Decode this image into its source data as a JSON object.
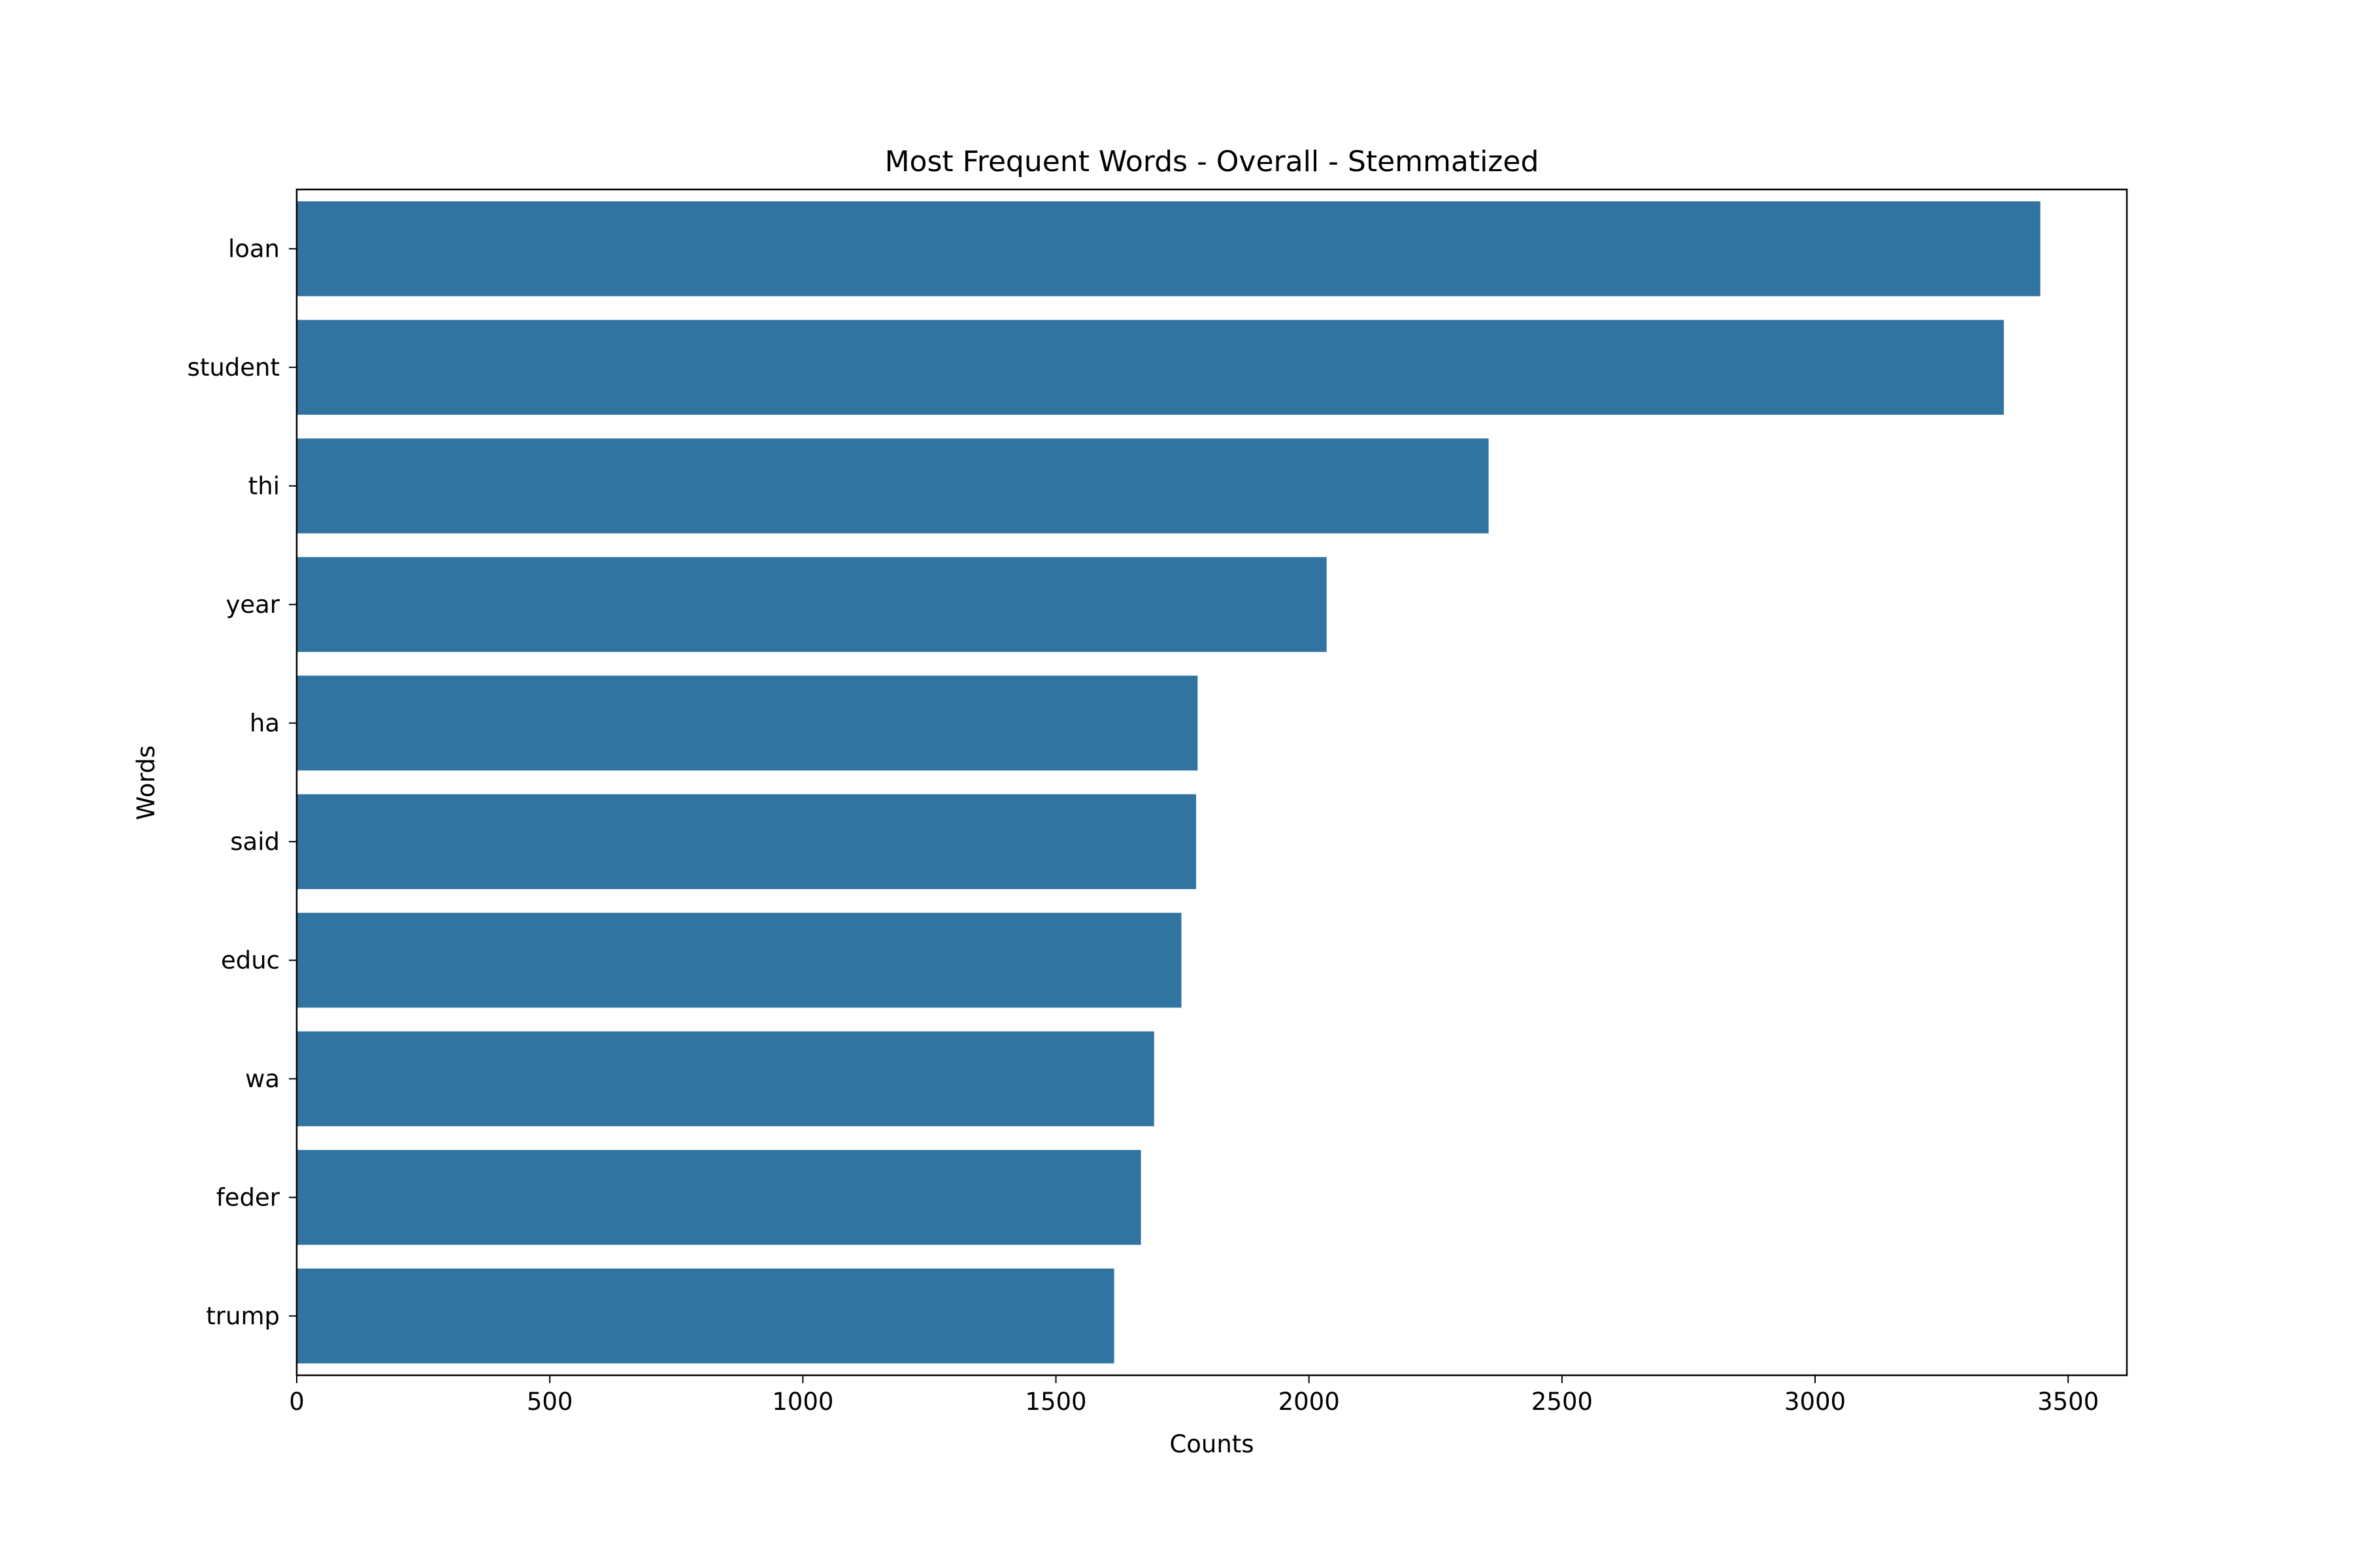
{
  "chart_data": {
    "type": "bar",
    "orientation": "horizontal",
    "title": "Most Frequent Words - Overall - Stemmatized",
    "xlabel": "Counts",
    "ylabel": "Words",
    "categories": [
      "loan",
      "student",
      "thi",
      "year",
      "ha",
      "said",
      "educ",
      "wa",
      "feder",
      "trump"
    ],
    "values": [
      3445,
      3373,
      2355,
      2035,
      1780,
      1777,
      1748,
      1694,
      1668,
      1615
    ],
    "xlim": [
      0,
      3616
    ],
    "xticks": [
      0,
      500,
      1000,
      1500,
      2000,
      2500,
      3000,
      3500
    ],
    "xtick_labels": [
      "0",
      "500",
      "1000",
      "1500",
      "2000",
      "2500",
      "3000",
      "3500"
    ],
    "grid": false,
    "colors": {
      "bar": "#3274a1",
      "axis": "#000000"
    }
  }
}
